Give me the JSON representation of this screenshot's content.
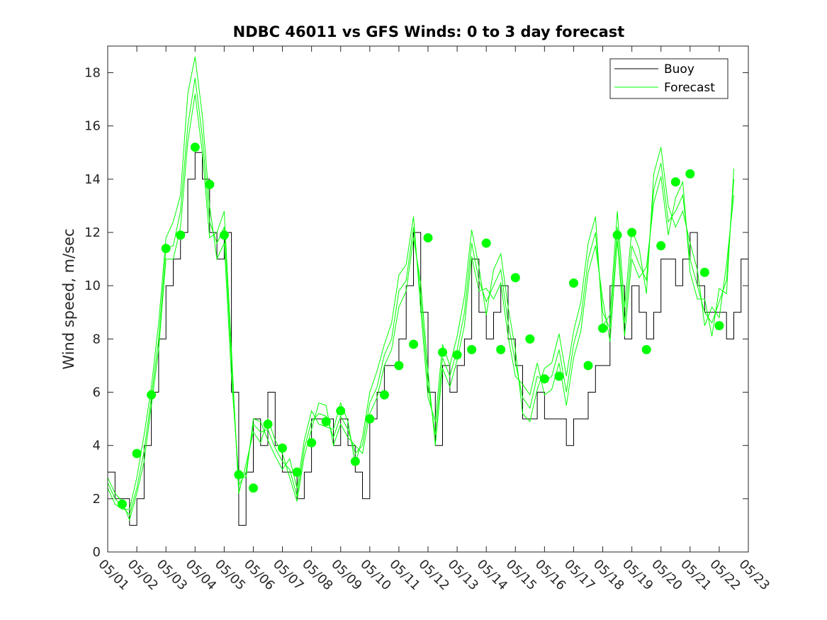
{
  "chart_data": {
    "type": "line",
    "title": "NDBC 46011 vs GFS Winds: 0 to 3 day forecast",
    "xlabel": "",
    "ylabel": "Wind speed, m/sec",
    "ylim": [
      0,
      19
    ],
    "yticks": [
      0,
      2,
      4,
      6,
      8,
      10,
      12,
      14,
      16,
      18
    ],
    "xlim": [
      1,
      23
    ],
    "xticks": [
      "05/01",
      "05/02",
      "05/03",
      "05/04",
      "05/05",
      "05/06",
      "05/07",
      "05/08",
      "05/09",
      "05/10",
      "05/11",
      "05/12",
      "05/13",
      "05/14",
      "05/15",
      "05/16",
      "05/17",
      "05/18",
      "05/19",
      "05/20",
      "05/21",
      "05/22",
      "05/23"
    ],
    "legend": {
      "position": "top-right",
      "entries": [
        "Buoy",
        "Forecast"
      ]
    },
    "colors": {
      "buoy": "#000000",
      "forecast": "#00ff00"
    },
    "grid": false,
    "series": [
      {
        "name": "Buoy",
        "x": [
          1.0,
          1.25,
          1.5,
          1.75,
          2.0,
          2.25,
          2.5,
          2.75,
          3.0,
          3.25,
          3.5,
          3.75,
          4.0,
          4.25,
          4.5,
          4.75,
          5.0,
          5.25,
          5.5,
          5.75,
          6.0,
          6.25,
          6.5,
          6.75,
          7.0,
          7.25,
          7.5,
          7.75,
          8.0,
          8.25,
          8.5,
          8.75,
          9.0,
          9.25,
          9.5,
          9.75,
          10.0,
          10.25,
          10.5,
          10.75,
          11.0,
          11.25,
          11.5,
          11.75,
          12.0,
          12.25,
          12.5,
          12.75,
          13.0,
          13.25,
          13.5,
          13.75,
          14.0,
          14.25,
          14.5,
          14.75,
          15.0,
          15.25,
          15.5,
          15.75,
          16.0,
          16.25,
          16.5,
          16.75,
          17.0,
          17.25,
          17.5,
          17.75,
          18.0,
          18.25,
          18.5,
          18.75,
          19.0,
          19.25,
          19.5,
          19.75,
          20.0,
          20.25,
          20.5,
          20.75,
          21.0,
          21.25,
          21.5,
          21.75,
          22.0,
          22.25,
          22.5,
          22.75,
          23.0
        ],
        "y": [
          3,
          2,
          2,
          1,
          2,
          4,
          6,
          8,
          10,
          11,
          12,
          14,
          15,
          14,
          12,
          11,
          12,
          6,
          1,
          3,
          5,
          4,
          6,
          4,
          3,
          3,
          2,
          3,
          5,
          5,
          5,
          4,
          5,
          4,
          3,
          2,
          5,
          6,
          7,
          7,
          8,
          10,
          12,
          9,
          6,
          4,
          7,
          6,
          7,
          8,
          11,
          9,
          8,
          9,
          10,
          8,
          7,
          5,
          5,
          6,
          5,
          5,
          5,
          4,
          5,
          5,
          6,
          7,
          7,
          10,
          10,
          8,
          10,
          9,
          8,
          9,
          11,
          11,
          10,
          11,
          12,
          10,
          9,
          9,
          9,
          8,
          9,
          11,
          13
        ]
      }
    ],
    "forecast_runs": [
      [
        2.6,
        2.0,
        1.7,
        1.4,
        2.4,
        3.8,
        5.8,
        8.0,
        11.4,
        11.5,
        12.8,
        16.0,
        17.8,
        15.6,
        12.4,
        11.6,
        12.2,
        7.2,
        2.5,
        3.0,
        4.8,
        4.5,
        4.6,
        3.9,
        3.4,
        3.1,
        2.1,
        3.9,
        4.9,
        5.2,
        5.1,
        4.3,
        5.1,
        4.6,
        3.7,
        4.0,
        5.6,
        6.2,
        7.4,
        8.0,
        9.8,
        10.2,
        12.2,
        9.6,
        6.3,
        4.4,
        7.3,
        6.6,
        7.6,
        9.0,
        11.6,
        10.2,
        9.4,
        10.0,
        10.6,
        8.6,
        7.1,
        5.8,
        5.4,
        6.6,
        6.4,
        6.6,
        7.6,
        6.0,
        7.8,
        8.8,
        11.0,
        12.0,
        9.0,
        8.4,
        12.2,
        8.6,
        11.5,
        10.8,
        10.2,
        13.6,
        14.6,
        12.4,
        12.8,
        13.4,
        11.0,
        10.0,
        9.0,
        8.6,
        9.4,
        10.2,
        14.0
      ],
      [
        2.4,
        1.8,
        1.6,
        1.6,
        2.8,
        4.4,
        6.2,
        8.6,
        11.8,
        12.4,
        13.4,
        17.2,
        18.6,
        16.4,
        13.0,
        11.0,
        11.6,
        6.6,
        2.8,
        2.8,
        5.0,
        4.9,
        4.2,
        3.6,
        3.1,
        3.5,
        2.4,
        4.2,
        5.3,
        4.8,
        4.7,
        4.6,
        5.6,
        4.9,
        3.3,
        4.3,
        6.0,
        6.8,
        7.8,
        8.6,
        10.4,
        10.8,
        12.6,
        9.1,
        5.8,
        4.9,
        7.8,
        7.0,
        8.1,
        9.6,
        12.1,
        10.7,
        8.9,
        10.6,
        11.2,
        9.2,
        7.6,
        5.2,
        4.9,
        6.1,
        6.9,
        7.1,
        8.2,
        6.6,
        8.3,
        9.4,
        11.6,
        12.6,
        8.5,
        8.9,
        12.8,
        9.2,
        12.1,
        11.4,
        9.7,
        14.2,
        15.2,
        13.0,
        12.2,
        12.8,
        11.6,
        10.6,
        8.5,
        9.2,
        8.8,
        10.8,
        13.4
      ],
      [
        2.8,
        2.2,
        1.9,
        1.2,
        2.2,
        3.4,
        5.5,
        7.6,
        11.0,
        11.0,
        12.2,
        15.4,
        17.2,
        15.0,
        11.8,
        12.0,
        12.8,
        7.6,
        2.2,
        3.3,
        4.5,
        4.1,
        5.0,
        4.2,
        3.7,
        2.8,
        1.9,
        3.6,
        4.6,
        5.6,
        5.5,
        4.0,
        4.8,
        4.3,
        4.0,
        3.7,
        5.2,
        5.8,
        7.0,
        7.6,
        9.2,
        9.8,
        11.8,
        10.1,
        6.8,
        4.0,
        6.9,
        6.2,
        7.2,
        8.5,
        11.1,
        9.8,
        9.9,
        9.5,
        10.1,
        8.1,
        6.6,
        6.3,
        5.9,
        7.1,
        5.9,
        6.1,
        7.1,
        5.5,
        7.3,
        8.3,
        10.5,
        11.5,
        9.5,
        7.9,
        11.7,
        8.1,
        11.0,
        10.3,
        10.7,
        13.1,
        14.1,
        11.9,
        13.3,
        13.9,
        10.5,
        9.5,
        9.5,
        8.1,
        9.9,
        9.7,
        14.4
      ]
    ],
    "forecast_markers": {
      "x": [
        1.5,
        2.0,
        2.5,
        3.0,
        3.5,
        4.0,
        4.5,
        5.0,
        5.5,
        6.0,
        6.5,
        7.0,
        7.5,
        8.0,
        8.5,
        9.0,
        9.5,
        10.0,
        10.5,
        11.0,
        11.5,
        12.0,
        12.5,
        13.0,
        13.5,
        14.0,
        14.5,
        15.0,
        15.5,
        16.0,
        16.5,
        17.0,
        17.5,
        18.0,
        18.5,
        19.0,
        19.5,
        20.0,
        20.5,
        21.0,
        21.5,
        22.0
      ],
      "y": [
        1.8,
        3.7,
        5.9,
        11.4,
        11.9,
        15.2,
        13.8,
        11.9,
        2.9,
        2.4,
        4.8,
        3.9,
        3.0,
        4.1,
        4.9,
        5.3,
        3.4,
        5.0,
        5.9,
        7.0,
        7.8,
        11.8,
        7.5,
        7.4,
        7.6,
        11.6,
        7.6,
        10.3,
        8.0,
        6.5,
        6.6,
        10.1,
        7.0,
        8.4,
        11.9,
        12.0,
        7.6,
        11.5,
        13.9,
        14.2,
        10.5,
        8.5
      ]
    }
  }
}
